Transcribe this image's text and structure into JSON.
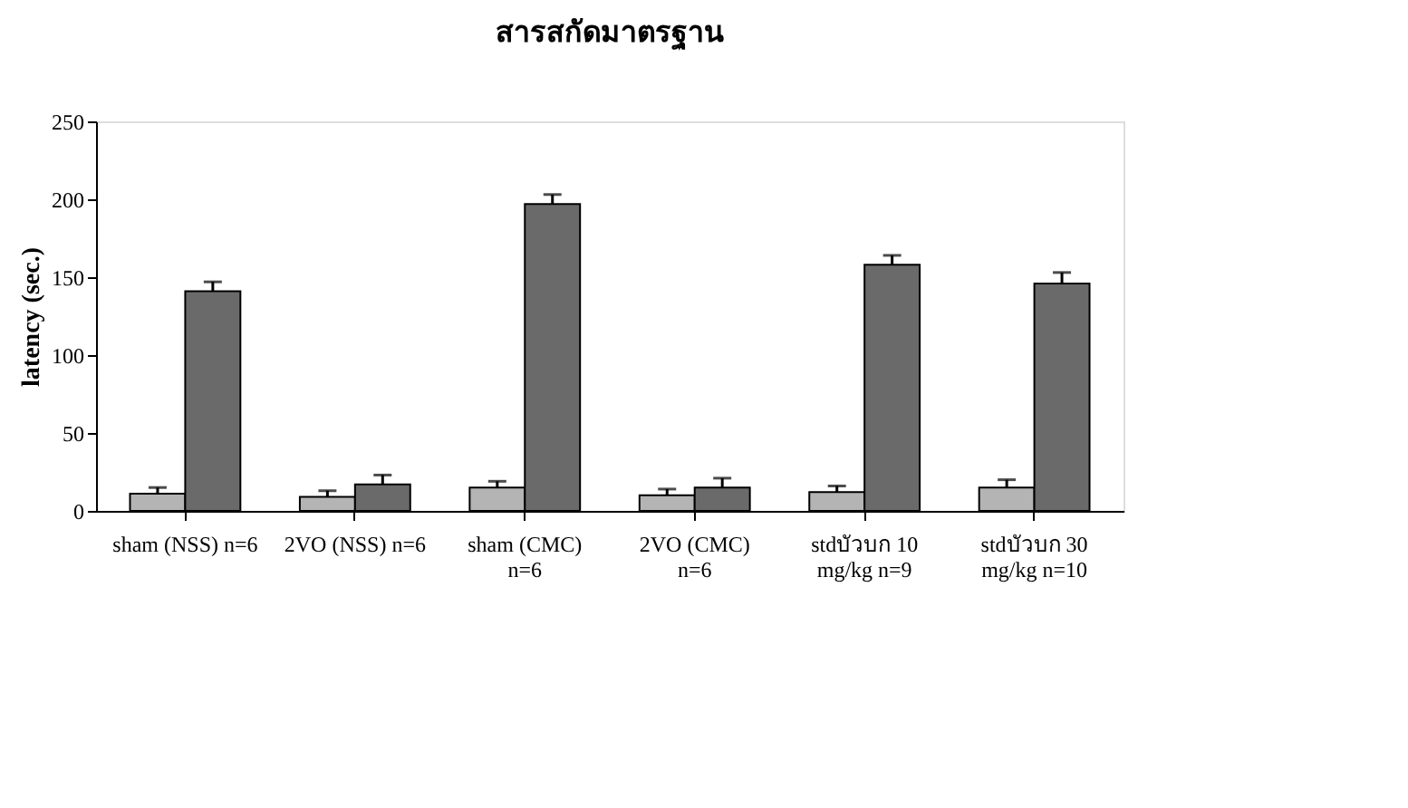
{
  "chart_data": {
    "type": "bar",
    "title": "สารสกัดมาตรฐาน",
    "ylabel": "latency (sec.)",
    "categories": [
      "sham (NSS) n=6",
      "2VO (NSS) n=6",
      "sham (CMC)\nn=6",
      "2VO (CMC)\nn=6",
      "stdบัวบก 10\nmg/kg n=9",
      "stdบัวบก 30\nmg/kg n=10"
    ],
    "series": [
      {
        "color": "#b4b4b4",
        "values": [
          11,
          9,
          15,
          10,
          12,
          15
        ],
        "errors": [
          [
            11,
            15
          ],
          [
            9,
            13
          ],
          [
            15,
            19
          ],
          [
            10,
            14
          ],
          [
            12,
            16
          ],
          [
            15,
            20
          ]
        ]
      },
      {
        "color": "#6a6a6a",
        "values": [
          141,
          17,
          197,
          15,
          158,
          146
        ],
        "errors": [
          [
            141,
            147
          ],
          [
            17,
            23
          ],
          [
            197,
            203
          ],
          [
            15,
            21
          ],
          [
            158,
            164
          ],
          [
            146,
            153
          ]
        ]
      }
    ],
    "ylim": [
      0,
      250
    ],
    "yticks": [
      0,
      50,
      100,
      150,
      200,
      250
    ],
    "grid": false
  }
}
